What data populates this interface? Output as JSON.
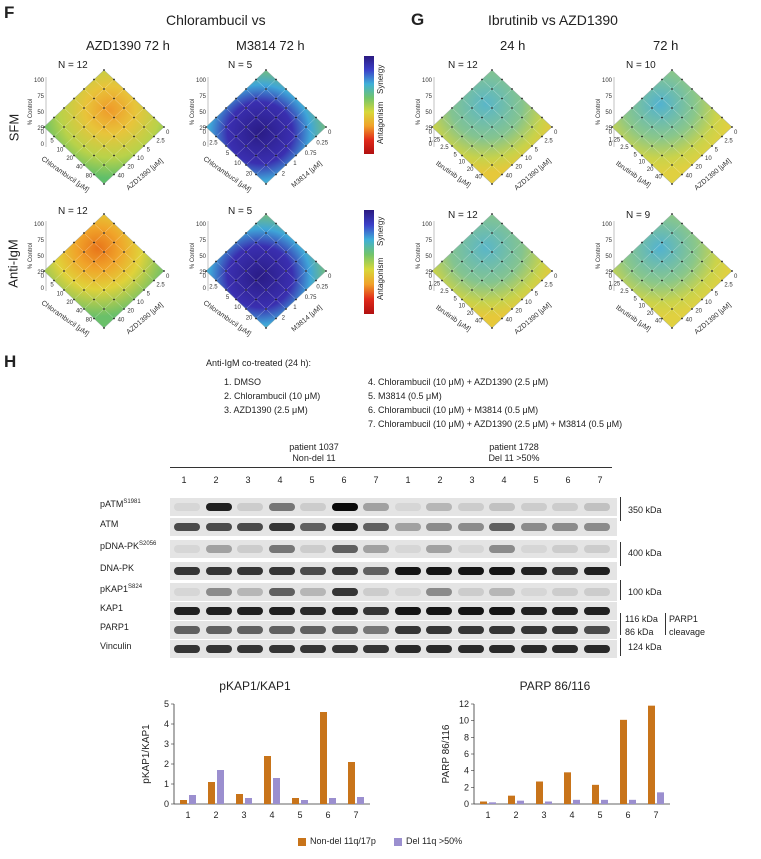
{
  "panel_f": {
    "letter": "F",
    "title": "Chlorambucil vs",
    "col1": "AZD1390 72 h",
    "col2": "M3814 72 h",
    "row1": "SFM",
    "row2": "Anti-IgM",
    "n_a": "N = 12",
    "n_b": "N = 5",
    "n_c": "N = 12",
    "n_d": "N = 5",
    "y_axis": "% Control",
    "x_axis": "Chlorambucil [μM]",
    "z_axis_azd": "AZD1390 [μM]",
    "z_axis_m": "M3814 [μM]",
    "y_ticks": [
      "100",
      "75",
      "50",
      "25",
      "0"
    ],
    "chl_ticks": [
      "0",
      "5",
      "10",
      "20",
      "40",
      "80"
    ],
    "chl_ticks_m": [
      "0",
      "2.5",
      "5",
      "10",
      "20"
    ],
    "azd_ticks": [
      "0",
      "2.5",
      "5",
      "10",
      "20",
      "40"
    ],
    "m_ticks": [
      "0",
      "0.25",
      "0.75",
      "1",
      "2"
    ],
    "legend_top": "Synergy",
    "legend_bottom": "Antagonism"
  },
  "panel_g": {
    "letter": "G",
    "title": "Ibrutinib vs AZD1390",
    "col1": "24 h",
    "col2": "72 h",
    "n_a": "N = 12",
    "n_b": "N = 10",
    "n_c": "N = 12",
    "n_d": "N = 9",
    "y_axis": "% Control",
    "x_axis": "Ibrutinib [μM]",
    "z_axis": "AZD1390 [μM]",
    "y_ticks": [
      "100",
      "75",
      "50",
      "25",
      "0"
    ],
    "ibr_ticks": [
      "0",
      "1.25",
      "2.5",
      "5",
      "10",
      "20",
      "40"
    ],
    "azd_ticks": [
      "0",
      "2.5",
      "5",
      "10",
      "20",
      "40"
    ]
  },
  "panel_h": {
    "letter": "H",
    "cotreat": "Anti-IgM co-treated (24 h):",
    "conditions": [
      "1. DMSO",
      "2. Chlorambucil (10 μM)",
      "3. AZD1390 (2.5 μM)",
      "4. Chlorambucil (10 μM) + AZD1390 (2.5 μM)",
      "5. M3814 (0.5 μM)",
      "6. Chlorambucil (10 μM) + M3814 (0.5 μM)",
      "7. Chlorambucil (10 μM) + AZD1390 (2.5 μM) + M3814 (0.5 μM)"
    ],
    "patient1": "patient 1037",
    "patient1_sub": "Non-del 11",
    "patient2": "patient 1728",
    "patient2_sub": "Del 11 >50%",
    "lanes": [
      "1",
      "2",
      "3",
      "4",
      "5",
      "6",
      "7"
    ],
    "blots": [
      {
        "name": "pATM",
        "sup": "S1981"
      },
      {
        "name": "ATM",
        "sup": ""
      },
      {
        "name": "pDNA-PK",
        "sup": "S2056"
      },
      {
        "name": "DNA-PK",
        "sup": ""
      },
      {
        "name": "pKAP1",
        "sup": "S824"
      },
      {
        "name": "KAP1",
        "sup": ""
      },
      {
        "name": "PARP1",
        "sup": ""
      },
      {
        "name": "Vinculin",
        "sup": ""
      }
    ],
    "kda_350": "350 kDa",
    "kda_400": "400 kDa",
    "kda_100": "100 kDa",
    "kda_116": "116 kDa",
    "kda_86": "86 kDa",
    "kda_124": "124 kDa",
    "parp_note1": "PARP1",
    "parp_note2": "cleavage"
  },
  "chart_data": [
    {
      "type": "bar",
      "title": "pKAP1/KAP1",
      "ylabel": "pKAP1/KAP1",
      "xlabel": "",
      "categories": [
        "1",
        "2",
        "3",
        "4",
        "5",
        "6",
        "7"
      ],
      "ylim": [
        0,
        5
      ],
      "yticks": [
        "0",
        "1",
        "2",
        "3",
        "4",
        "5"
      ],
      "series": [
        {
          "name": "Non-del 11q/17p",
          "color": "#c8741a",
          "values": [
            0.2,
            1.1,
            0.5,
            2.4,
            0.3,
            4.6,
            2.1
          ]
        },
        {
          "name": "Del 11q >50%",
          "color": "#9b8fcf",
          "values": [
            0.45,
            1.7,
            0.3,
            1.3,
            0.2,
            0.3,
            0.35
          ]
        }
      ]
    },
    {
      "type": "bar",
      "title": "PARP 86/116",
      "ylabel": "PARP 86/116",
      "xlabel": "",
      "categories": [
        "1",
        "2",
        "3",
        "4",
        "5",
        "6",
        "7"
      ],
      "ylim": [
        0,
        12
      ],
      "yticks": [
        "0",
        "2",
        "4",
        "6",
        "8",
        "10",
        "12"
      ],
      "series": [
        {
          "name": "Non-del 11q/17p",
          "color": "#c8741a",
          "values": [
            0.3,
            1.0,
            2.7,
            3.8,
            2.3,
            10.1,
            11.8
          ]
        },
        {
          "name": "Del 11q >50%",
          "color": "#9b8fcf",
          "values": [
            0.2,
            0.4,
            0.3,
            0.5,
            0.5,
            0.5,
            1.4
          ]
        }
      ]
    }
  ],
  "legend": {
    "s1": "Non-del 11q/17p",
    "s2": "Del 11q >50%",
    "c1": "#c8741a",
    "c2": "#9b8fcf"
  }
}
